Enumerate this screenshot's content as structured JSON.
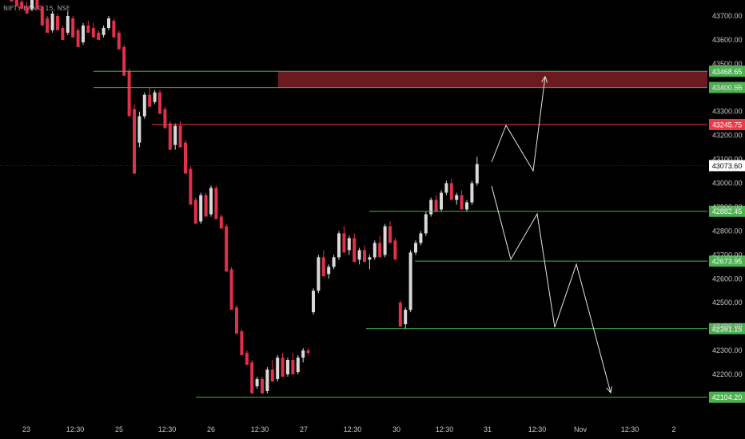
{
  "header": {
    "symbol_label": "NIFTY BANK, 15, NSE"
  },
  "colors": {
    "background": "#000000",
    "up": "#d9d9d9",
    "down": "#e0304a",
    "support": "#4caf50",
    "resistance": "#f23645",
    "zone": "#6b1a1f",
    "arrow": "#e6e6e6",
    "axis_text": "#c8c8c8"
  },
  "chart_data": {
    "type": "candlestick",
    "y_axis_ticks": [
      42200,
      42300,
      42400,
      42500,
      42600,
      42700,
      42800,
      42900,
      43000,
      43100,
      43200,
      43300,
      43400,
      43500,
      43600,
      43700
    ],
    "y_axis_tick_labels": [
      "42200.00",
      "42300.00",
      "42400.00",
      "42500.00",
      "42600.00",
      "42700.00",
      "42800.00",
      "42900.00",
      "43000.00",
      "43100.00",
      "43200.00",
      "43300.00",
      "43400.00",
      "43500.00",
      "43600.00",
      "43700.00"
    ],
    "ylim": [
      42050,
      43800
    ],
    "x_axis_labels": [
      "23",
      "12:30",
      "25",
      "12:30",
      "26",
      "12:30",
      "27",
      "12:30",
      "30",
      "12:30",
      "31",
      "12:30",
      "Nov",
      "12:30",
      "2"
    ],
    "last_price": {
      "value": 43073.6,
      "label": "43073.60"
    },
    "levels": [
      {
        "value": 43468.65,
        "label": "43468.65",
        "kind": "support",
        "from": 0
      },
      {
        "value": 43400.55,
        "label": "43400.55",
        "kind": "support",
        "from": 0
      },
      {
        "value": 43245.75,
        "label": "43245.75",
        "kind": "resistance",
        "from": 21
      },
      {
        "value": 42882.45,
        "label": "42882.45",
        "kind": "support",
        "from": 123
      },
      {
        "value": 42673.95,
        "label": "42673.95",
        "kind": "support",
        "from": 138
      },
      {
        "value": 42391.15,
        "label": "42391.15",
        "kind": "support",
        "from": 118
      },
      {
        "value": 42104.2,
        "label": "42104.20",
        "kind": "support",
        "from": 60
      }
    ],
    "zone": {
      "top": 43468.65,
      "bottom": 43400.55,
      "from": 93
    },
    "candles": [
      [
        43820,
        43840,
        43800,
        43780
      ],
      [
        43780,
        43800,
        43770,
        43760
      ],
      [
        43770,
        43790,
        43760,
        43740
      ],
      [
        43760,
        43770,
        43740,
        43730
      ],
      [
        43740,
        43760,
        43730,
        43710
      ],
      [
        43730,
        43780,
        43720,
        43770
      ],
      [
        43770,
        43780,
        43740,
        43730
      ],
      [
        43740,
        43745,
        43680,
        43660
      ],
      [
        43690,
        43700,
        43640,
        43630
      ],
      [
        43640,
        43720,
        43630,
        43710
      ],
      [
        43700,
        43710,
        43650,
        43640
      ],
      [
        43650,
        43660,
        43620,
        43600
      ],
      [
        43630,
        43720,
        43620,
        43700
      ],
      [
        43690,
        43700,
        43630,
        43610
      ],
      [
        43640,
        43650,
        43580,
        43570
      ],
      [
        43590,
        43670,
        43580,
        43660
      ],
      [
        43660,
        43680,
        43640,
        43630
      ],
      [
        43650,
        43670,
        43620,
        43610
      ],
      [
        43630,
        43640,
        43620,
        43600
      ],
      [
        43620,
        43660,
        43610,
        43650
      ],
      [
        43650,
        43700,
        43640,
        43690
      ],
      [
        43680,
        43690,
        43620,
        43610
      ],
      [
        43630,
        43640,
        43570,
        43560
      ],
      [
        43570,
        43580,
        43470,
        43450
      ],
      [
        43470,
        43480,
        43300,
        43280
      ],
      [
        43310,
        43330,
        43200,
        43040
      ],
      [
        43170,
        43300,
        43150,
        43280
      ],
      [
        43280,
        43380,
        43270,
        43370
      ],
      [
        43370,
        43400,
        43330,
        43320
      ],
      [
        43340,
        43390,
        43330,
        43380
      ],
      [
        43380,
        43390,
        43300,
        43290
      ],
      [
        43310,
        43320,
        43240,
        43230
      ],
      [
        43250,
        43260,
        43150,
        43140
      ],
      [
        43160,
        43250,
        43140,
        43240
      ],
      [
        43240,
        43260,
        43160,
        43150
      ],
      [
        43170,
        43180,
        43050,
        43040
      ],
      [
        43060,
        43070,
        42920,
        42910
      ],
      [
        42930,
        42940,
        42840,
        42830
      ],
      [
        42840,
        42960,
        42830,
        42950
      ],
      [
        42950,
        42960,
        42870,
        42860
      ],
      [
        42870,
        42990,
        42860,
        42980
      ],
      [
        42980,
        42990,
        42860,
        42850
      ],
      [
        42860,
        42870,
        42820,
        42810
      ],
      [
        42820,
        42830,
        42640,
        42630
      ],
      [
        42640,
        42650,
        42480,
        42470
      ],
      [
        42480,
        42490,
        42380,
        42370
      ],
      [
        42380,
        42390,
        42290,
        42280
      ],
      [
        42290,
        42300,
        42250,
        42240
      ],
      [
        42250,
        42260,
        42160,
        42120
      ],
      [
        42150,
        42190,
        42140,
        42180
      ],
      [
        42180,
        42190,
        42130,
        42120
      ],
      [
        42130,
        42230,
        42120,
        42220
      ],
      [
        42220,
        42260,
        42180,
        42170
      ],
      [
        42180,
        42280,
        42170,
        42270
      ],
      [
        42270,
        42290,
        42200,
        42190
      ],
      [
        42200,
        42270,
        42190,
        42260
      ],
      [
        42260,
        42290,
        42210,
        42200
      ],
      [
        42210,
        42280,
        42200,
        42270
      ],
      [
        42270,
        42310,
        42250,
        42300
      ],
      [
        42300,
        42310,
        42280,
        42290
      ],
      [
        42460,
        42560,
        42450,
        42550
      ],
      [
        42550,
        42700,
        42540,
        42690
      ],
      [
        42690,
        42720,
        42620,
        42610
      ],
      [
        42620,
        42660,
        42600,
        42650
      ],
      [
        42650,
        42700,
        42640,
        42690
      ],
      [
        42690,
        42800,
        42680,
        42790
      ],
      [
        42790,
        42820,
        42720,
        42710
      ],
      [
        42720,
        42780,
        42700,
        42770
      ],
      [
        42770,
        42790,
        42680,
        42670
      ],
      [
        42680,
        42730,
        42660,
        42720
      ],
      [
        42720,
        42740,
        42680,
        42670
      ],
      [
        42680,
        42700,
        42640,
        42690
      ],
      [
        42690,
        42760,
        42680,
        42750
      ],
      [
        42750,
        42780,
        42700,
        42690
      ],
      [
        42700,
        42830,
        42690,
        42820
      ],
      [
        42820,
        42840,
        42760,
        42750
      ],
      [
        42760,
        42770,
        42690,
        42680
      ],
      [
        42500,
        42510,
        42410,
        42400
      ],
      [
        42410,
        42480,
        42390,
        42470
      ],
      [
        42470,
        42720,
        42460,
        42710
      ],
      [
        42710,
        42760,
        42700,
        42750
      ],
      [
        42750,
        42800,
        42740,
        42790
      ],
      [
        42790,
        42880,
        42780,
        42870
      ],
      [
        42870,
        42940,
        42860,
        42930
      ],
      [
        42930,
        42950,
        42890,
        42880
      ],
      [
        42890,
        42970,
        42880,
        42960
      ],
      [
        42960,
        43010,
        42950,
        43000
      ],
      [
        43000,
        43020,
        42940,
        42930
      ],
      [
        42930,
        42960,
        42910,
        42950
      ],
      [
        42950,
        42970,
        42900,
        42890
      ],
      [
        42890,
        42930,
        42880,
        42920
      ],
      [
        42920,
        43010,
        42910,
        43000
      ],
      [
        43000,
        43110,
        42990,
        43080
      ]
    ],
    "projections": [
      [
        [
          615,
          203
        ],
        [
          633,
          157
        ],
        [
          667,
          214
        ],
        [
          682,
          96
        ]
      ],
      [
        [
          615,
          233
        ],
        [
          639,
          325
        ],
        [
          672,
          268
        ],
        [
          694,
          410
        ],
        [
          721,
          331
        ],
        [
          764,
          492
        ]
      ]
    ]
  }
}
